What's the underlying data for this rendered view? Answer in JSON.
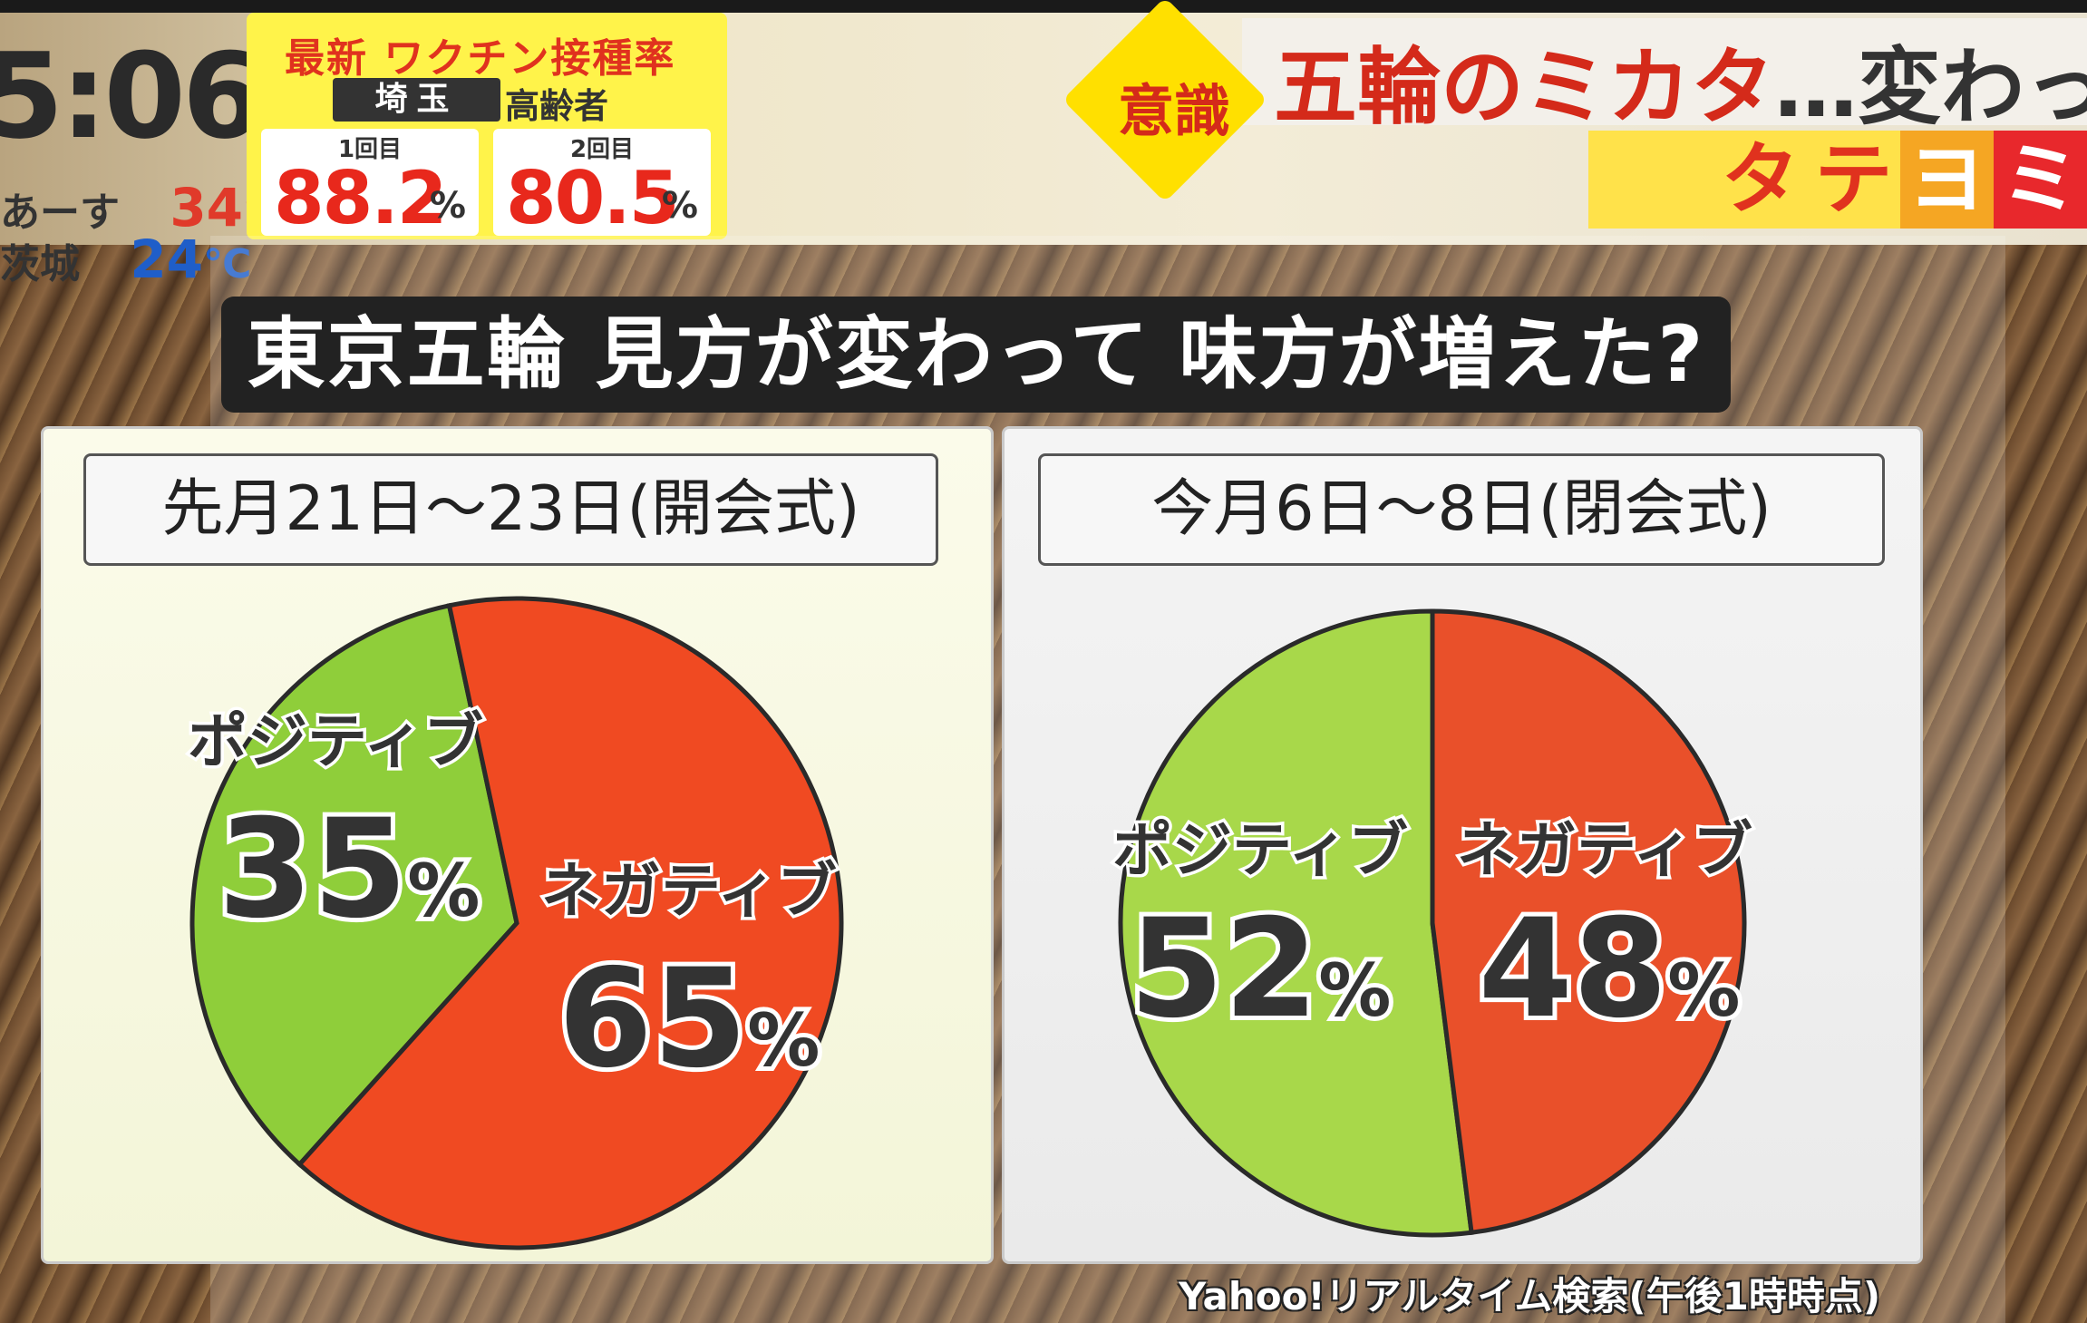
{
  "clock": "5:06",
  "weather": [
    {
      "label": "あーす",
      "temp": "34",
      "unit": "℃",
      "color": "#e03a2a"
    },
    {
      "label": "茨城",
      "temp": "24",
      "unit": "℃",
      "color": "#1f5ec9"
    }
  ],
  "vaccine": {
    "title": "最新 ワクチン接種率",
    "prefecture": "埼玉",
    "group": "高齢者",
    "doses": [
      {
        "label": "1回目",
        "value": "88.2",
        "unit": "%"
      },
      {
        "label": "2回目",
        "value": "80.5",
        "unit": "%"
      }
    ]
  },
  "header": {
    "badge": "意識",
    "title": "五輪のミカタ",
    "ellipsis": "…",
    "title_rest": "変わったか",
    "corner_chars": [
      {
        "char": "タ",
        "bg": "#ffe24a",
        "color": "#e0321e"
      },
      {
        "char": "テ",
        "bg": "#ffe24a",
        "color": "#e0321e"
      },
      {
        "char": "ヨ",
        "bg": "#f5a623",
        "color": "#ffffff"
      },
      {
        "char": "ミ",
        "bg": "#e8282c",
        "color": "#ffffff"
      }
    ]
  },
  "chart_data": [
    {
      "type": "pie",
      "title": "東京五輪 見方が変わって 味方が増えた?",
      "subtitle": "先月21日～23日(開会式)",
      "categories": [
        "ポジティブ",
        "ネガティブ"
      ],
      "values": [
        35,
        65
      ],
      "unit": "%",
      "colors": [
        "#8fce3a",
        "#f04a22"
      ]
    },
    {
      "type": "pie",
      "title": "東京五輪 見方が変わって 味方が増えた?",
      "subtitle": "今月6日～8日(閉会式)",
      "categories": [
        "ポジティブ",
        "ネガティブ"
      ],
      "values": [
        52,
        48
      ],
      "unit": "%",
      "colors": [
        "#a8d84a",
        "#e9502a"
      ]
    }
  ],
  "source": "Yahoo!リアルタイム検索(午後1時時点)"
}
